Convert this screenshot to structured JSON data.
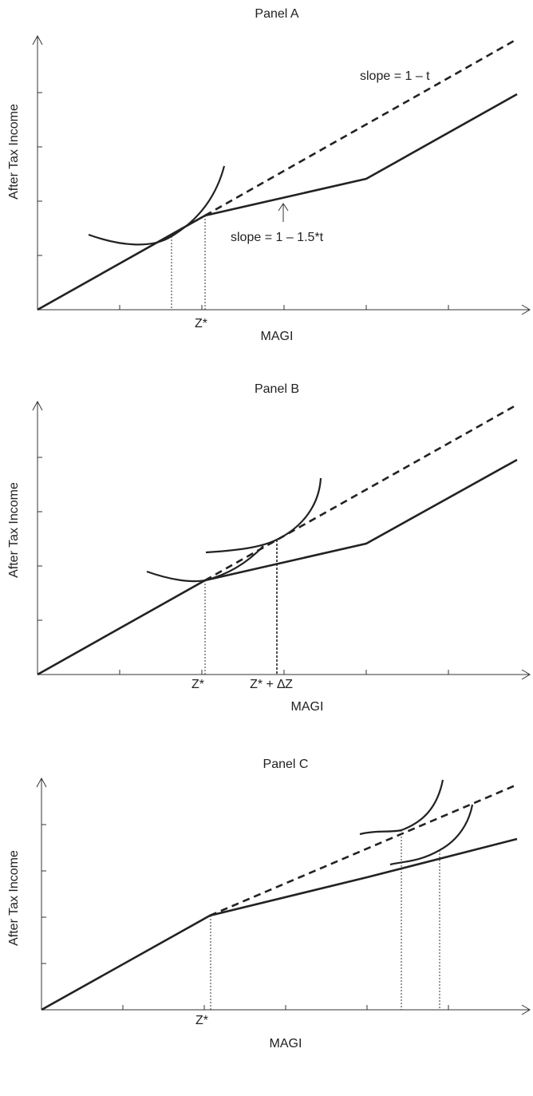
{
  "panels": {
    "a": {
      "title": "Panel A",
      "ylabel": "After Tax Income",
      "xlabel": "MAGI",
      "zstar": "Z*",
      "slope_upper": "slope = 1 – t",
      "slope_lower": "slope = 1 – 1.5*t"
    },
    "b": {
      "title": "Panel B",
      "ylabel": "After Tax Income",
      "xlabel": "MAGI",
      "zstar": "Z*",
      "zdelta": "Z* + ∆Z"
    },
    "c": {
      "title": "Panel C",
      "ylabel": "After Tax Income",
      "xlabel": "MAGI",
      "zstar": "Z*"
    }
  }
}
